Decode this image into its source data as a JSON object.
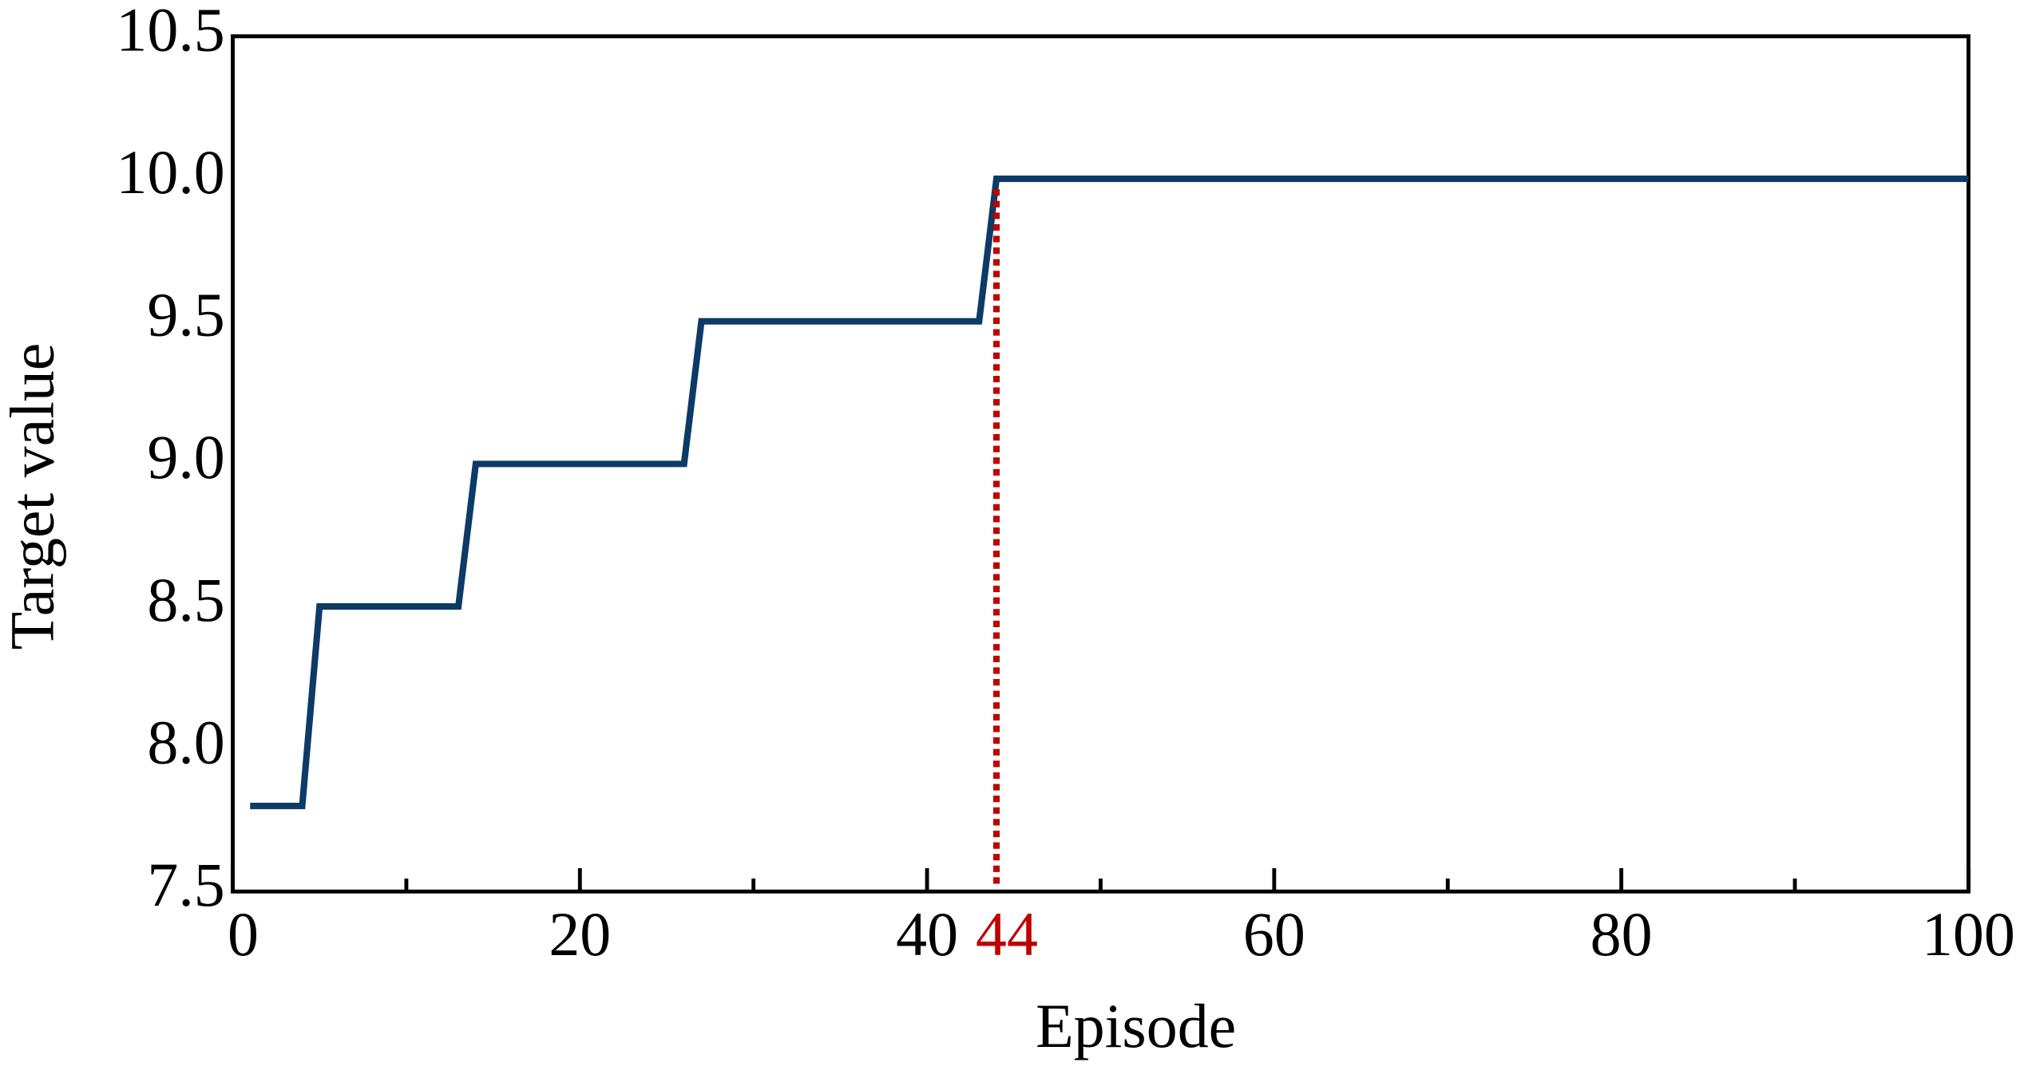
{
  "chart_data": {
    "type": "line",
    "x_label": "Episode",
    "y_label": "Target value",
    "series": [
      {
        "color": "#0d3a66",
        "x": [
          1,
          4,
          5,
          13,
          14,
          26,
          27,
          43,
          44,
          100
        ],
        "values": [
          7.8,
          7.8,
          8.5,
          8.5,
          9,
          9,
          9.5,
          9.5,
          10,
          10
        ]
      }
    ],
    "xlim": [
      0,
      100
    ],
    "xticks": [
      0,
      20,
      40,
      60,
      80,
      100
    ],
    "xminorticks": [
      10,
      30,
      50,
      70,
      90
    ],
    "ylim": [
      7.5,
      10.5
    ],
    "yticks": [
      7.5,
      {
        "value": 8,
        "label": "8.0"
      },
      8.5,
      {
        "value": 9,
        "label": "9.0"
      },
      9.5,
      {
        "value": 10,
        "label": "10.0"
      },
      10.5
    ],
    "marker": {
      "x": 44,
      "label": "44",
      "color": "#c00000"
    }
  }
}
